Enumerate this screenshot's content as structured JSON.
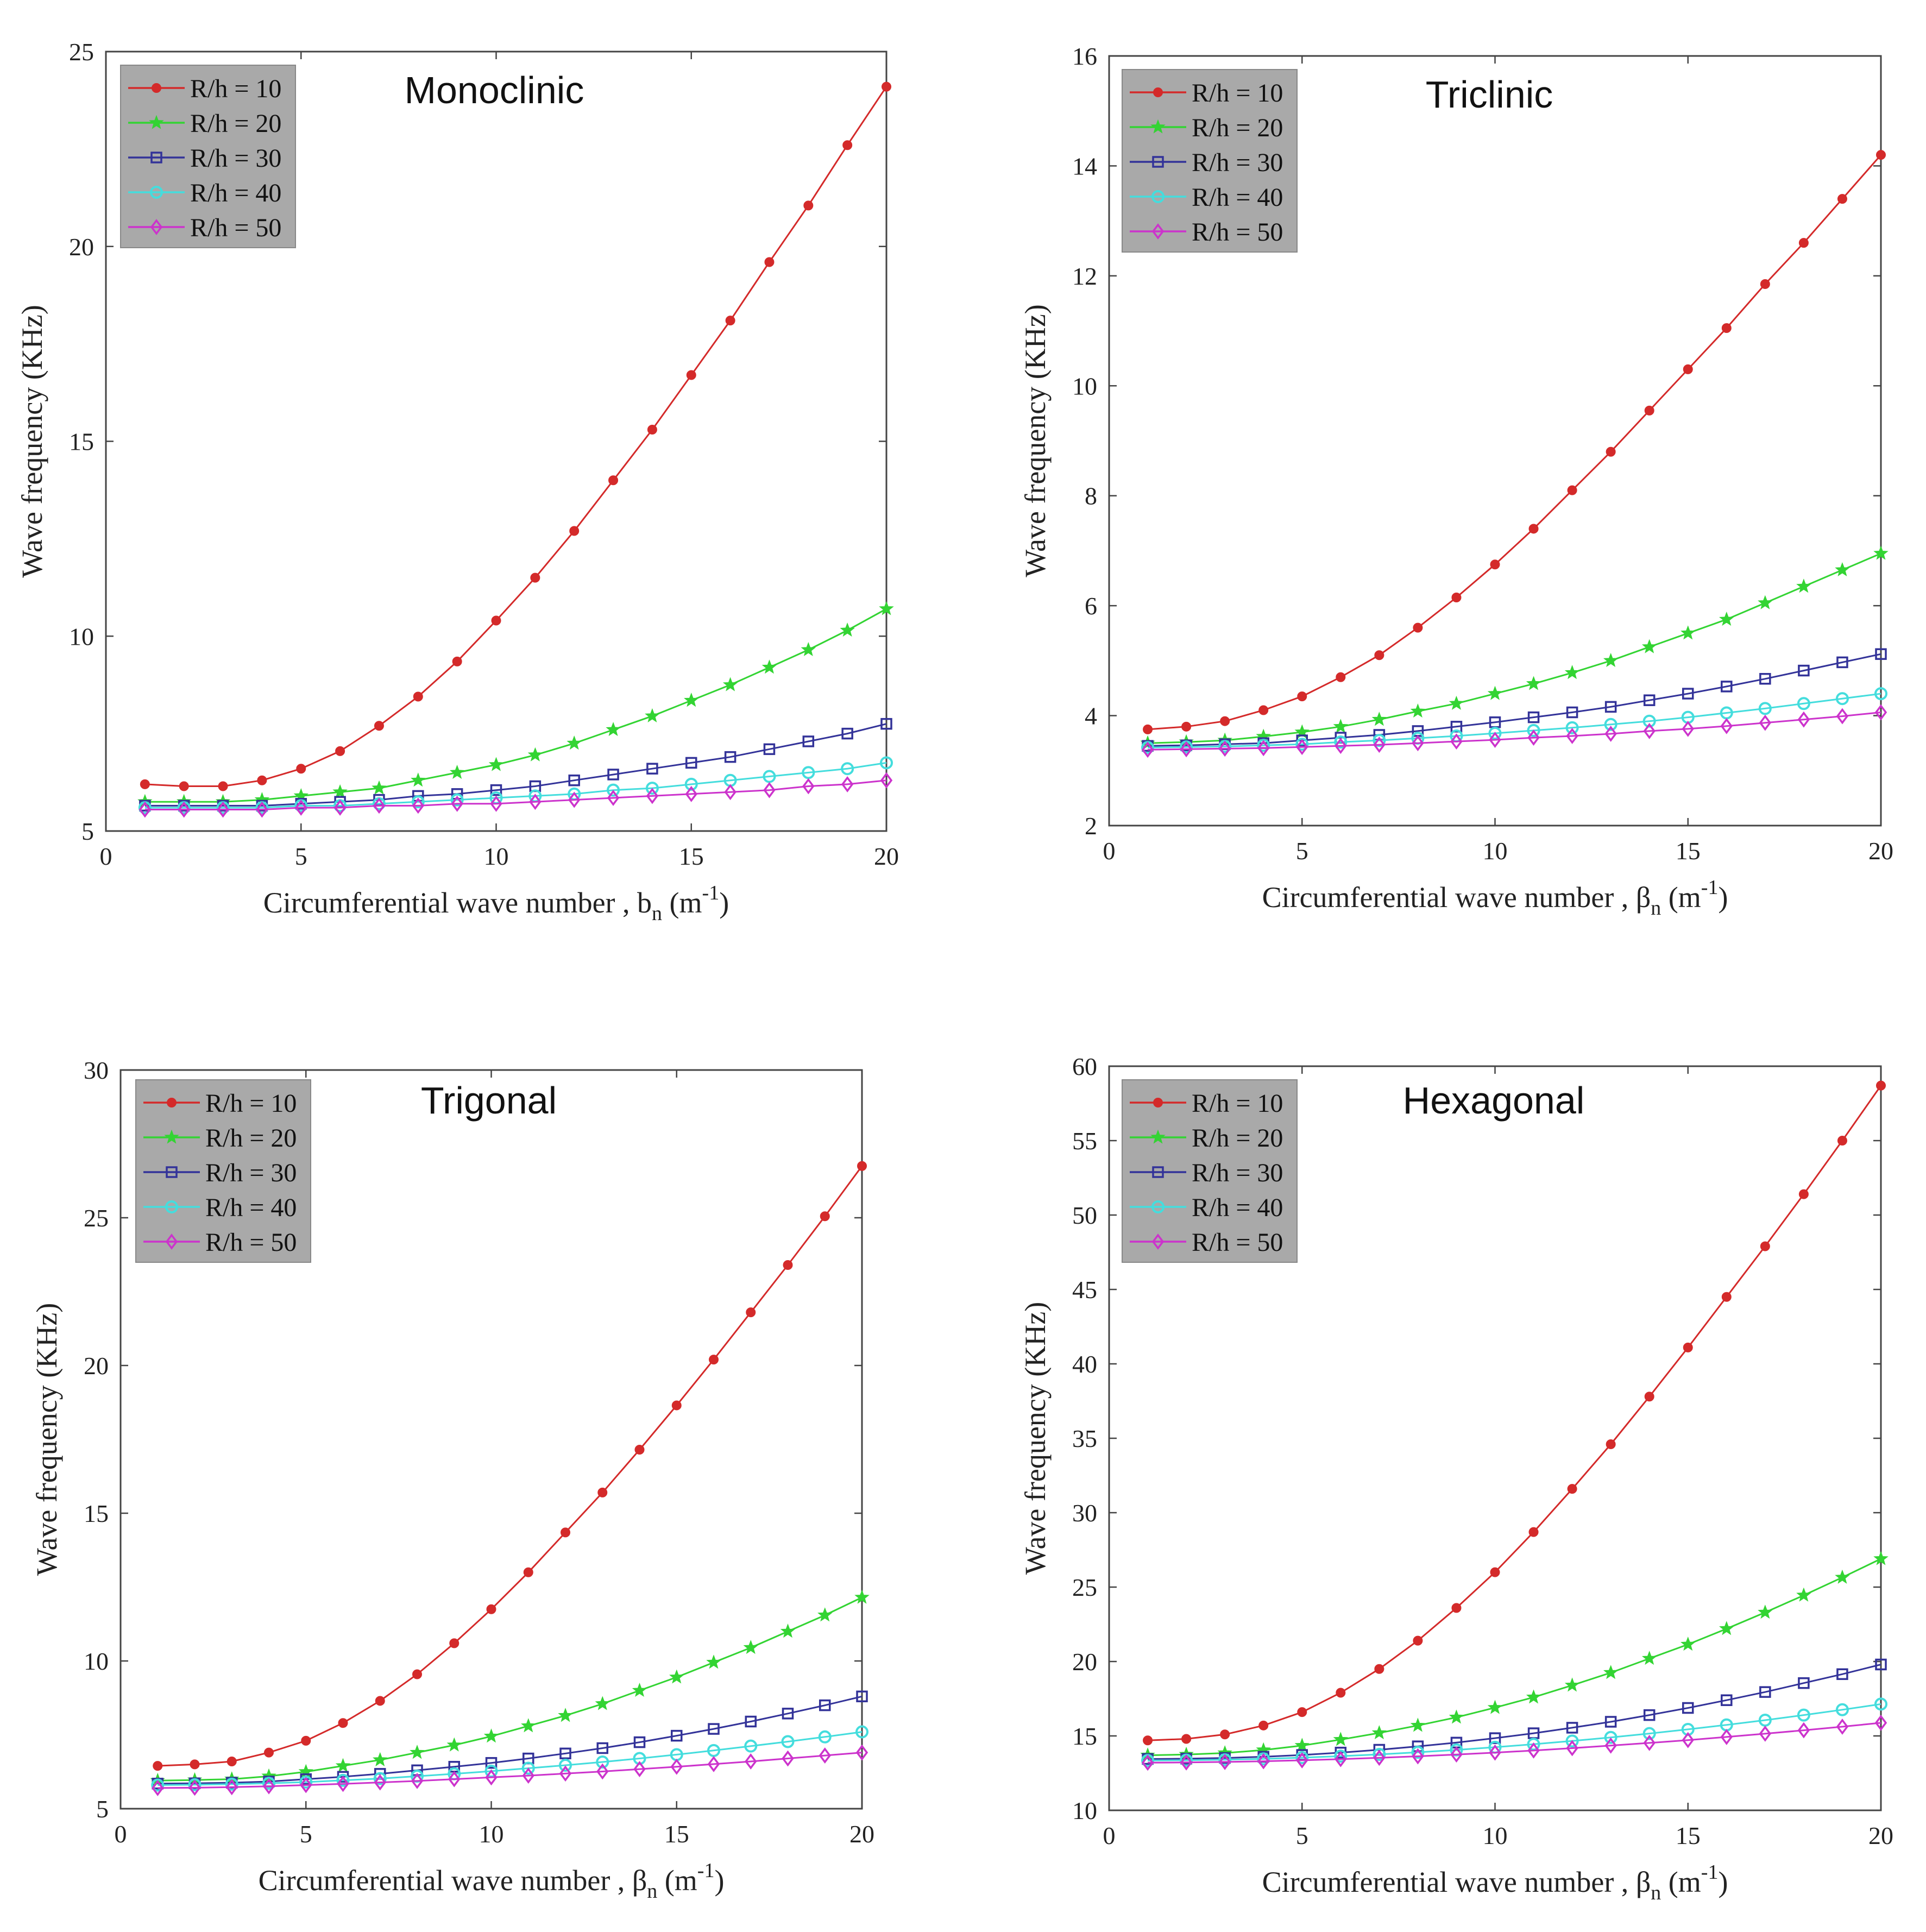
{
  "chart_data": [
    {
      "type": "line",
      "title": "Monoclinic",
      "xlabel": "Circumferential wave number , ",
      "xsym": "b",
      "xsub": "n",
      "xunit_open": " (m",
      "xunit_sup": "-1",
      "xunit_close": ")",
      "ylabel": "Wave frequency (KHz)",
      "xlim": [
        0,
        20
      ],
      "ylim": [
        5,
        25
      ],
      "xticks": [
        0,
        5,
        10,
        15,
        20
      ],
      "yticks": [
        5,
        10,
        15,
        20,
        25
      ],
      "x": [
        1,
        2,
        3,
        4,
        5,
        6,
        7,
        8,
        9,
        10,
        11,
        12,
        13,
        14,
        15,
        16,
        17,
        18,
        19,
        20
      ],
      "series": [
        {
          "name": "R/h = 10",
          "color": "#d42a2a",
          "marker": "dot",
          "values": [
            6.2,
            6.15,
            6.15,
            6.3,
            6.6,
            7.05,
            7.7,
            8.45,
            9.35,
            10.4,
            11.5,
            12.7,
            14.0,
            15.3,
            16.7,
            18.1,
            19.6,
            21.05,
            22.6,
            24.1
          ]
        },
        {
          "name": "R/h = 20",
          "color": "#33d433",
          "marker": "star",
          "values": [
            5.75,
            5.75,
            5.75,
            5.8,
            5.9,
            6.0,
            6.1,
            6.3,
            6.5,
            6.7,
            6.95,
            7.25,
            7.6,
            7.95,
            8.35,
            8.75,
            9.2,
            9.65,
            10.15,
            10.7
          ]
        },
        {
          "name": "R/h = 30",
          "color": "#333399",
          "marker": "square",
          "values": [
            5.65,
            5.65,
            5.65,
            5.65,
            5.7,
            5.75,
            5.8,
            5.9,
            5.95,
            6.05,
            6.15,
            6.3,
            6.45,
            6.6,
            6.75,
            6.9,
            7.1,
            7.3,
            7.5,
            7.75
          ]
        },
        {
          "name": "R/h = 40",
          "color": "#44dddd",
          "marker": "circle",
          "values": [
            5.6,
            5.6,
            5.6,
            5.6,
            5.65,
            5.65,
            5.7,
            5.75,
            5.8,
            5.85,
            5.9,
            5.95,
            6.05,
            6.1,
            6.2,
            6.3,
            6.4,
            6.5,
            6.6,
            6.75
          ]
        },
        {
          "name": "R/h = 50",
          "color": "#cc33cc",
          "marker": "diamond",
          "values": [
            5.55,
            5.55,
            5.55,
            5.55,
            5.6,
            5.6,
            5.65,
            5.65,
            5.7,
            5.7,
            5.75,
            5.8,
            5.85,
            5.9,
            5.95,
            6.0,
            6.05,
            6.15,
            6.2,
            6.3
          ]
        }
      ]
    },
    {
      "type": "line",
      "title": "Triclinic",
      "xlabel": "Circumferential wave number , ",
      "xsym": "β",
      "xsub": "n",
      "xunit_open": " (m",
      "xunit_sup": "-1",
      "xunit_close": ")",
      "ylabel": "Wave frequency (KHz)",
      "xlim": [
        0,
        20
      ],
      "ylim": [
        2,
        16
      ],
      "xticks": [
        0,
        5,
        10,
        15,
        20
      ],
      "yticks": [
        2,
        4,
        6,
        8,
        10,
        12,
        14,
        16
      ],
      "x": [
        1,
        2,
        3,
        4,
        5,
        6,
        7,
        8,
        9,
        10,
        11,
        12,
        13,
        14,
        15,
        16,
        17,
        18,
        19,
        20
      ],
      "series": [
        {
          "name": "R/h = 10",
          "color": "#d42a2a",
          "marker": "dot",
          "values": [
            3.75,
            3.8,
            3.9,
            4.1,
            4.35,
            4.7,
            5.1,
            5.6,
            6.15,
            6.75,
            7.4,
            8.1,
            8.8,
            9.55,
            10.3,
            11.05,
            11.85,
            12.6,
            13.4,
            14.2
          ]
        },
        {
          "name": "R/h = 20",
          "color": "#33d433",
          "marker": "star",
          "values": [
            3.5,
            3.52,
            3.55,
            3.62,
            3.7,
            3.8,
            3.93,
            4.08,
            4.22,
            4.4,
            4.58,
            4.78,
            5.0,
            5.25,
            5.5,
            5.75,
            6.05,
            6.35,
            6.65,
            6.95
          ]
        },
        {
          "name": "R/h = 30",
          "color": "#333399",
          "marker": "square",
          "values": [
            3.45,
            3.46,
            3.48,
            3.5,
            3.55,
            3.6,
            3.65,
            3.72,
            3.8,
            3.88,
            3.97,
            4.06,
            4.16,
            4.28,
            4.4,
            4.53,
            4.67,
            4.82,
            4.97,
            5.12
          ]
        },
        {
          "name": "R/h = 40",
          "color": "#44dddd",
          "marker": "circle",
          "values": [
            3.42,
            3.43,
            3.44,
            3.46,
            3.48,
            3.52,
            3.55,
            3.59,
            3.63,
            3.68,
            3.73,
            3.78,
            3.84,
            3.9,
            3.97,
            4.05,
            4.13,
            4.22,
            4.31,
            4.4
          ]
        },
        {
          "name": "R/h = 50",
          "color": "#cc33cc",
          "marker": "diamond",
          "values": [
            3.38,
            3.39,
            3.4,
            3.41,
            3.43,
            3.45,
            3.47,
            3.5,
            3.53,
            3.56,
            3.6,
            3.63,
            3.67,
            3.72,
            3.76,
            3.81,
            3.87,
            3.93,
            3.99,
            4.06
          ]
        }
      ]
    },
    {
      "type": "line",
      "title": "Trigonal",
      "xlabel": "Circumferential wave number , ",
      "xsym": "β",
      "xsub": "n",
      "xunit_open": " (m",
      "xunit_sup": "-1",
      "xunit_close": ")",
      "ylabel": "Wave frequency (KHz)",
      "xlim": [
        0,
        20
      ],
      "ylim": [
        5,
        30
      ],
      "xticks": [
        0,
        5,
        10,
        15,
        20
      ],
      "yticks": [
        5,
        10,
        15,
        20,
        25,
        30
      ],
      "x": [
        1,
        2,
        3,
        4,
        5,
        6,
        7,
        8,
        9,
        10,
        11,
        12,
        13,
        14,
        15,
        16,
        17,
        18,
        19,
        20
      ],
      "series": [
        {
          "name": "R/h = 10",
          "color": "#d42a2a",
          "marker": "dot",
          "values": [
            6.45,
            6.5,
            6.6,
            6.9,
            7.3,
            7.9,
            8.65,
            9.55,
            10.6,
            11.75,
            13.0,
            14.35,
            15.7,
            17.15,
            18.65,
            20.2,
            21.8,
            23.4,
            25.05,
            26.75
          ]
        },
        {
          "name": "R/h = 20",
          "color": "#33d433",
          "marker": "star",
          "values": [
            5.95,
            5.97,
            6.0,
            6.1,
            6.25,
            6.45,
            6.65,
            6.9,
            7.15,
            7.45,
            7.8,
            8.15,
            8.55,
            9.0,
            9.45,
            9.95,
            10.45,
            11.0,
            11.55,
            12.15
          ]
        },
        {
          "name": "R/h = 30",
          "color": "#333399",
          "marker": "square",
          "values": [
            5.85,
            5.86,
            5.88,
            5.92,
            6.0,
            6.08,
            6.18,
            6.3,
            6.42,
            6.55,
            6.7,
            6.87,
            7.05,
            7.25,
            7.47,
            7.7,
            7.95,
            8.22,
            8.5,
            8.8
          ]
        },
        {
          "name": "R/h = 40",
          "color": "#44dddd",
          "marker": "circle",
          "values": [
            5.8,
            5.81,
            5.83,
            5.86,
            5.9,
            5.96,
            6.02,
            6.1,
            6.18,
            6.27,
            6.37,
            6.47,
            6.58,
            6.7,
            6.83,
            6.97,
            7.12,
            7.27,
            7.43,
            7.6
          ]
        },
        {
          "name": "R/h = 50",
          "color": "#cc33cc",
          "marker": "diamond",
          "values": [
            5.7,
            5.71,
            5.73,
            5.76,
            5.8,
            5.84,
            5.89,
            5.94,
            6.0,
            6.06,
            6.12,
            6.19,
            6.26,
            6.34,
            6.42,
            6.51,
            6.6,
            6.7,
            6.8,
            6.9
          ]
        }
      ]
    },
    {
      "type": "line",
      "title": "Hexagonal",
      "xlabel": "Circumferential wave number , ",
      "xsym": "β",
      "xsub": "n",
      "xunit_open": " (m",
      "xunit_sup": "-1",
      "xunit_close": ")",
      "ylabel": "Wave frequency (KHz)",
      "xlim": [
        0,
        20
      ],
      "ylim": [
        10,
        60
      ],
      "xticks": [
        0,
        5,
        10,
        15,
        20
      ],
      "yticks": [
        10,
        15,
        20,
        25,
        30,
        35,
        40,
        45,
        50,
        55,
        60
      ],
      "x": [
        1,
        2,
        3,
        4,
        5,
        6,
        7,
        8,
        9,
        10,
        11,
        12,
        13,
        14,
        15,
        16,
        17,
        18,
        19,
        20
      ],
      "series": [
        {
          "name": "R/h = 10",
          "color": "#d42a2a",
          "marker": "dot",
          "values": [
            14.7,
            14.8,
            15.1,
            15.7,
            16.6,
            17.9,
            19.5,
            21.4,
            23.6,
            26.0,
            28.7,
            31.6,
            34.6,
            37.8,
            41.1,
            44.5,
            47.9,
            51.4,
            55.0,
            58.7
          ]
        },
        {
          "name": "R/h = 20",
          "color": "#33d433",
          "marker": "star",
          "values": [
            13.7,
            13.75,
            13.85,
            14.05,
            14.35,
            14.75,
            15.2,
            15.7,
            16.25,
            16.9,
            17.6,
            18.4,
            19.25,
            20.2,
            21.15,
            22.2,
            23.3,
            24.45,
            25.65,
            26.9
          ]
        },
        {
          "name": "R/h = 30",
          "color": "#333399",
          "marker": "square",
          "values": [
            13.45,
            13.47,
            13.52,
            13.6,
            13.72,
            13.88,
            14.07,
            14.3,
            14.55,
            14.85,
            15.18,
            15.55,
            15.95,
            16.4,
            16.88,
            17.4,
            17.95,
            18.55,
            19.15,
            19.8
          ]
        },
        {
          "name": "R/h = 40",
          "color": "#44dddd",
          "marker": "circle",
          "values": [
            13.35,
            13.37,
            13.4,
            13.46,
            13.54,
            13.64,
            13.76,
            13.9,
            14.06,
            14.24,
            14.44,
            14.66,
            14.9,
            15.16,
            15.44,
            15.74,
            16.06,
            16.4,
            16.76,
            17.14
          ]
        },
        {
          "name": "R/h = 50",
          "color": "#cc33cc",
          "marker": "diamond",
          "values": [
            13.2,
            13.22,
            13.25,
            13.3,
            13.36,
            13.44,
            13.53,
            13.63,
            13.75,
            13.88,
            14.02,
            14.18,
            14.35,
            14.53,
            14.72,
            14.93,
            15.15,
            15.38,
            15.62,
            15.88
          ]
        }
      ]
    }
  ]
}
